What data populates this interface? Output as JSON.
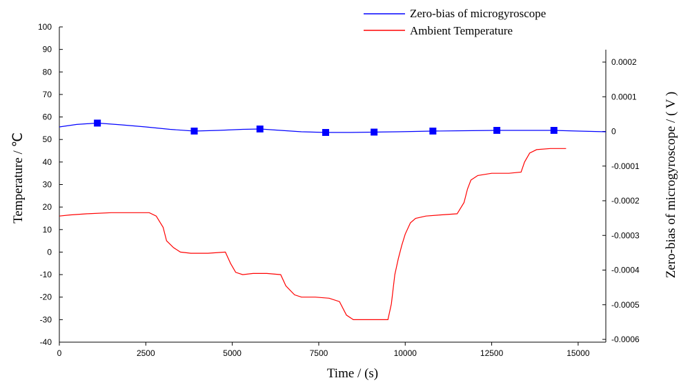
{
  "chart_data": {
    "type": "line",
    "xlabel": "Time / (s)",
    "ylabel_left": "Temperature / ℃",
    "ylabel_right": "Zero-bias of microgyroscope / ( V )",
    "xlim": [
      0,
      15800
    ],
    "ylim_left": [
      -40,
      100
    ],
    "ylim_right": [
      -0.0006,
      0.00023
    ],
    "x_ticks": [
      "0",
      "2500",
      "5000",
      "7500",
      "10000",
      "12500",
      "15000"
    ],
    "y_left_ticks": [
      "100",
      "90",
      "80",
      "70",
      "60",
      "50",
      "40",
      "30",
      "20",
      "10",
      "0",
      "-10",
      "-20",
      "-30",
      "-40"
    ],
    "y_right_ticks": [
      "0.0002",
      "0.0001",
      "0",
      "-0.0001",
      "-0.0002",
      "-0.0003",
      "-0.0004",
      "-0.0005",
      "-0.0006"
    ],
    "grid": false,
    "legend_position": "top-right",
    "series": [
      {
        "name": "Zero-bias of microgyroscope",
        "axis": "right",
        "color": "#0000ff",
        "marker": "square",
        "x": [
          0,
          500,
          1100,
          1800,
          2500,
          3200,
          3900,
          4600,
          5300,
          5800,
          6400,
          7000,
          7700,
          8400,
          9100,
          9800,
          10800,
          11700,
          12650,
          13500,
          14300,
          15000,
          15800
        ],
        "y": [
          1.3e-05,
          2e-05,
          2.4e-05,
          1.9e-05,
          1.3e-05,
          6e-06,
          1e-06,
          3e-06,
          6e-06,
          7e-06,
          3e-06,
          -1e-06,
          -3e-06,
          -3e-06,
          -2e-06,
          -1e-06,
          1e-06,
          2e-06,
          3e-06,
          3e-06,
          3e-06,
          1e-06,
          -1e-06
        ],
        "marker_x": [
          1100,
          3900,
          5800,
          7700,
          9100,
          10800,
          12650,
          14300
        ],
        "marker_y": [
          2.4e-05,
          1e-06,
          7e-06,
          -3e-06,
          -2e-06,
          1e-06,
          3e-06,
          3e-06
        ]
      },
      {
        "name": "Ambient Temperature",
        "axis": "left",
        "color": "#ff0000",
        "x": [
          0,
          300,
          800,
          1500,
          2000,
          2600,
          2800,
          3000,
          3100,
          3300,
          3500,
          3800,
          4300,
          4800,
          4950,
          5100,
          5300,
          5600,
          6000,
          6400,
          6550,
          6800,
          7000,
          7400,
          7800,
          8100,
          8300,
          8500,
          8800,
          9200,
          9500,
          9600,
          9700,
          9800,
          9900,
          10000,
          10150,
          10300,
          10600,
          11000,
          11500,
          11700,
          11800,
          11900,
          12100,
          12500,
          13000,
          13350,
          13450,
          13600,
          13800,
          14200,
          14650
        ],
        "y": [
          16,
          16.5,
          17,
          17.5,
          17.5,
          17.5,
          16,
          11,
          5,
          2,
          0,
          -0.5,
          -0.5,
          0,
          -5,
          -9,
          -10,
          -9.5,
          -9.5,
          -10,
          -15,
          -19,
          -20,
          -20,
          -20.5,
          -22,
          -28,
          -30,
          -30,
          -30,
          -30,
          -23,
          -10,
          -3,
          3,
          8,
          13,
          15,
          16,
          16.5,
          17,
          22,
          28,
          32,
          34,
          35,
          35,
          35.5,
          40,
          44,
          45.5,
          46,
          46
        ]
      }
    ]
  }
}
